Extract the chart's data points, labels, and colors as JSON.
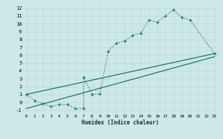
{
  "xlabel": "Humidex (Indice chaleur)",
  "bg_color": "#cce8e8",
  "grid_color": "#c4d8d8",
  "line_color": "#1a7060",
  "xlim": [
    -0.5,
    23.5
  ],
  "ylim": [
    -1.5,
    12.5
  ],
  "xticks": [
    0,
    1,
    2,
    3,
    4,
    5,
    6,
    7,
    8,
    9,
    10,
    11,
    12,
    13,
    14,
    15,
    16,
    17,
    18,
    19,
    20,
    21,
    22,
    23
  ],
  "yticks": [
    -1,
    0,
    1,
    2,
    3,
    4,
    5,
    6,
    7,
    8,
    9,
    10,
    11,
    12
  ],
  "upper_line_x": [
    0,
    23
  ],
  "upper_line_y": [
    1.0,
    6.2
  ],
  "lower_line_x": [
    0,
    23
  ],
  "lower_line_y": [
    -0.8,
    5.8
  ],
  "curve_x": [
    0,
    1,
    2,
    3,
    4,
    5,
    6,
    7,
    7,
    8,
    9,
    10,
    11,
    12,
    13,
    14,
    15,
    16,
    17,
    18,
    19,
    20,
    23
  ],
  "curve_y": [
    1.0,
    0.2,
    -0.2,
    -0.55,
    -0.3,
    -0.3,
    -0.8,
    -0.8,
    3.2,
    1.0,
    1.1,
    6.5,
    7.5,
    7.8,
    8.5,
    8.8,
    10.5,
    10.2,
    11.0,
    11.8,
    10.8,
    10.5,
    6.2
  ]
}
